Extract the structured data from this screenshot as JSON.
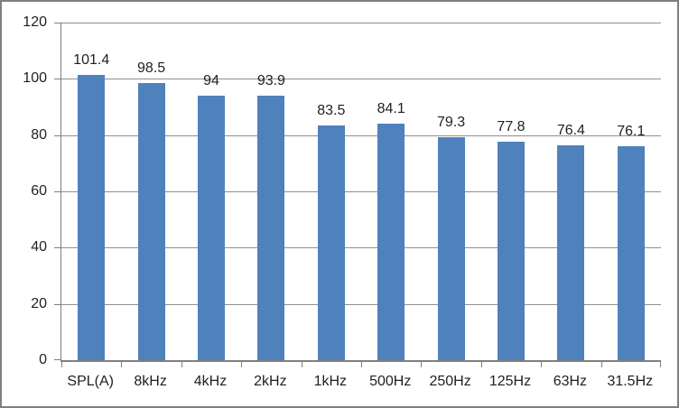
{
  "chart_data": {
    "type": "bar",
    "title": "",
    "xlabel": "",
    "ylabel": "",
    "categories": [
      "SPL(A)",
      "8kHz",
      "4kHz",
      "2kHz",
      "1kHz",
      "500Hz",
      "250Hz",
      "125Hz",
      "63Hz",
      "31.5Hz"
    ],
    "values": [
      101.4,
      98.5,
      94,
      93.9,
      83.5,
      84.1,
      79.3,
      77.8,
      76.4,
      76.1
    ],
    "value_labels": [
      "101.4",
      "98.5",
      "94",
      "93.9",
      "83.5",
      "84.1",
      "79.3",
      "77.8",
      "76.4",
      "76.1"
    ],
    "ylim": [
      0,
      120
    ],
    "yticks": [
      0,
      20,
      40,
      60,
      80,
      100,
      120
    ],
    "grid": true,
    "legend": "none",
    "colors": {
      "bar_fill": "#4f81bd",
      "gridline": "#909090",
      "axis_line": "#7f7f7f",
      "text": "#1f1f1f",
      "frame_border": "#808080",
      "background": "#ffffff"
    }
  }
}
